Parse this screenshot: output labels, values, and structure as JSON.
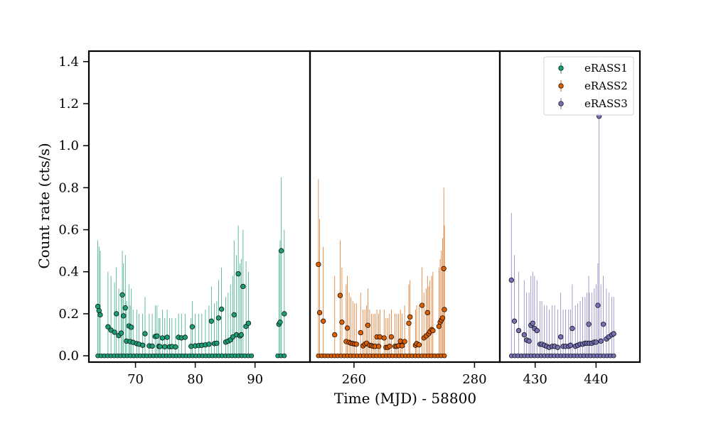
{
  "chart_data": {
    "type": "scatter",
    "xlabel": "Time (MJD) - 58800",
    "ylabel": "Count rate (cts/s)",
    "ylim": [
      -0.03,
      1.45
    ],
    "yticks": [
      0.0,
      0.2,
      0.4,
      0.6,
      0.8,
      1.0,
      1.2,
      1.4
    ],
    "ytick_labels": [
      "0.0",
      "0.2",
      "0.4",
      "0.6",
      "0.8",
      "1.0",
      "1.2",
      "1.4"
    ],
    "legend_position": "top-right",
    "grid": false,
    "panels": [
      {
        "name": "eRASS1",
        "xlim": [
          62.2,
          99.2
        ],
        "xticks": [
          70,
          80,
          90
        ],
        "xtick_labels": [
          "70",
          "80",
          "90"
        ]
      },
      {
        "name": "eRASS2",
        "xlim": [
          252.7,
          284.2
        ],
        "xticks": [
          260,
          280
        ],
        "xtick_labels": [
          "260",
          "280"
        ]
      },
      {
        "name": "eRASS3",
        "xlim": [
          424.2,
          447.2
        ],
        "xticks": [
          430,
          440
        ],
        "xtick_labels": [
          "430",
          "440"
        ]
      }
    ],
    "series": [
      {
        "name": "eRASS1",
        "color": "#1b9e77",
        "panel": 0,
        "points": [
          [
            63.7,
            0.235,
            0.55
          ],
          [
            63.9,
            0.215,
            0.52
          ],
          [
            64.1,
            0.195,
            0.5
          ],
          [
            65.4,
            0.138,
            0.4
          ],
          [
            65.9,
            0.122,
            0.38
          ],
          [
            66.5,
            0.112,
            0.35
          ],
          [
            66.8,
            0.2,
            0.42
          ],
          [
            67.2,
            0.096,
            0.32
          ],
          [
            67.6,
            0.108,
            0.3
          ],
          [
            67.8,
            0.29,
            0.5
          ],
          [
            68.0,
            0.19,
            0.44
          ],
          [
            68.3,
            0.228,
            0.48
          ],
          [
            68.5,
            0.07,
            0.26
          ],
          [
            68.9,
            0.142,
            0.34
          ],
          [
            69.1,
            0.068,
            0.24
          ],
          [
            69.3,
            0.136,
            0.32
          ],
          [
            69.6,
            0.064,
            0.22
          ],
          [
            70.2,
            0.058,
            0.22
          ],
          [
            70.6,
            0.055,
            0.2
          ],
          [
            71.2,
            0.05,
            0.2
          ],
          [
            71.6,
            0.105,
            0.28
          ],
          [
            72.3,
            0.047,
            0.2
          ],
          [
            72.8,
            0.046,
            0.2
          ],
          [
            73.3,
            0.092,
            0.24
          ],
          [
            73.6,
            0.094,
            0.24
          ],
          [
            73.9,
            0.045,
            0.18
          ],
          [
            74.1,
            0.044,
            0.18
          ],
          [
            74.5,
            0.085,
            0.22
          ],
          [
            74.9,
            0.043,
            0.18
          ],
          [
            75.3,
            0.088,
            0.22
          ],
          [
            75.7,
            0.043,
            0.18
          ],
          [
            76.1,
            0.044,
            0.18
          ],
          [
            76.7,
            0.042,
            0.18
          ],
          [
            77.2,
            0.088,
            0.2
          ],
          [
            77.7,
            0.085,
            0.2
          ],
          [
            78.3,
            0.088,
            0.2
          ],
          [
            79.3,
            0.045,
            0.18
          ],
          [
            79.5,
            0.138,
            0.26
          ],
          [
            80.0,
            0.047,
            0.2
          ],
          [
            80.6,
            0.049,
            0.2
          ],
          [
            81.1,
            0.05,
            0.2
          ],
          [
            81.7,
            0.052,
            0.22
          ],
          [
            82.3,
            0.055,
            0.24
          ],
          [
            82.7,
            0.165,
            0.33
          ],
          [
            83.2,
            0.058,
            0.25
          ],
          [
            83.6,
            0.06,
            0.26
          ],
          [
            83.9,
            0.18,
            0.36
          ],
          [
            84.4,
            0.222,
            0.42
          ],
          [
            85.1,
            0.065,
            0.28
          ],
          [
            85.5,
            0.07,
            0.3
          ],
          [
            85.9,
            0.076,
            0.34
          ],
          [
            86.3,
            0.09,
            0.38
          ],
          [
            86.5,
            0.195,
            0.55
          ],
          [
            86.9,
            0.1,
            0.48
          ],
          [
            87.2,
            0.39,
            0.62
          ],
          [
            87.5,
            0.095,
            0.44
          ],
          [
            87.7,
            0.1,
            0.46
          ],
          [
            88.0,
            0.33,
            0.6
          ],
          [
            88.5,
            0.14,
            0.45
          ],
          [
            88.9,
            0.155,
            0.4
          ],
          [
            94.0,
            0.15,
            0.5
          ],
          [
            94.2,
            0.16,
            0.55
          ],
          [
            94.4,
            0.5,
            0.85
          ],
          [
            94.9,
            0.2,
            0.6
          ]
        ]
      },
      {
        "name": "eRASS2",
        "color": "#d95f02",
        "panel": 1,
        "points": [
          [
            254.1,
            0.435,
            0.84
          ],
          [
            254.3,
            0.205,
            0.65
          ],
          [
            254.9,
            0.165,
            0.52
          ],
          [
            256.8,
            0.1,
            0.38
          ],
          [
            257.7,
            0.287,
            0.55
          ],
          [
            258.0,
            0.16,
            0.42
          ],
          [
            258.7,
            0.068,
            0.34
          ],
          [
            258.9,
            0.132,
            0.38
          ],
          [
            259.2,
            0.064,
            0.3
          ],
          [
            259.5,
            0.06,
            0.28
          ],
          [
            259.8,
            0.058,
            0.26
          ],
          [
            260.1,
            0.056,
            0.25
          ],
          [
            260.4,
            0.055,
            0.25
          ],
          [
            261.1,
            0.11,
            0.3
          ],
          [
            261.5,
            0.047,
            0.22
          ],
          [
            261.8,
            0.055,
            0.22
          ],
          [
            262.1,
            0.06,
            0.24
          ],
          [
            262.3,
            0.145,
            0.32
          ],
          [
            262.6,
            0.05,
            0.22
          ],
          [
            262.9,
            0.048,
            0.2
          ],
          [
            263.2,
            0.045,
            0.2
          ],
          [
            263.5,
            0.045,
            0.2
          ],
          [
            263.8,
            0.09,
            0.22
          ],
          [
            264.1,
            0.045,
            0.2
          ],
          [
            264.3,
            0.09,
            0.22
          ],
          [
            265.0,
            0.085,
            0.22
          ],
          [
            265.3,
            0.04,
            0.18
          ],
          [
            265.6,
            0.04,
            0.18
          ],
          [
            265.9,
            0.045,
            0.2
          ],
          [
            266.2,
            0.09,
            0.22
          ],
          [
            266.8,
            0.045,
            0.2
          ],
          [
            267.1,
            0.045,
            0.2
          ],
          [
            267.4,
            0.048,
            0.2
          ],
          [
            267.7,
            0.07,
            0.22
          ],
          [
            268.0,
            0.048,
            0.2
          ],
          [
            268.4,
            0.068,
            0.24
          ],
          [
            269.1,
            0.155,
            0.34
          ],
          [
            269.3,
            0.185,
            0.36
          ],
          [
            270.2,
            0.05,
            0.22
          ],
          [
            270.4,
            0.058,
            0.24
          ],
          [
            270.8,
            0.052,
            0.24
          ],
          [
            271.3,
            0.24,
            0.42
          ],
          [
            271.6,
            0.085,
            0.3
          ],
          [
            272.0,
            0.095,
            0.32
          ],
          [
            272.2,
            0.205,
            0.38
          ],
          [
            272.4,
            0.105,
            0.33
          ],
          [
            272.6,
            0.115,
            0.36
          ],
          [
            272.9,
            0.125,
            0.38
          ],
          [
            273.1,
            0.12,
            0.4
          ],
          [
            274.1,
            0.14,
            0.42
          ],
          [
            274.3,
            0.16,
            0.46
          ],
          [
            274.5,
            0.17,
            0.5
          ],
          [
            274.7,
            0.18,
            0.56
          ],
          [
            274.9,
            0.415,
            0.8
          ],
          [
            275.0,
            0.22,
            0.62
          ]
        ]
      },
      {
        "name": "eRASS3",
        "color": "#7570b3",
        "panel": 2,
        "points": [
          [
            426.1,
            0.36,
            0.68
          ],
          [
            426.6,
            0.165,
            0.48
          ],
          [
            427.3,
            0.12,
            0.4
          ],
          [
            428.2,
            0.1,
            0.36
          ],
          [
            428.6,
            0.075,
            0.3
          ],
          [
            429.0,
            0.07,
            0.3
          ],
          [
            429.3,
            0.145,
            0.38
          ],
          [
            429.6,
            0.155,
            0.4
          ],
          [
            429.9,
            0.13,
            0.38
          ],
          [
            430.3,
            0.12,
            0.36
          ],
          [
            430.8,
            0.055,
            0.26
          ],
          [
            431.1,
            0.055,
            0.26
          ],
          [
            431.5,
            0.05,
            0.24
          ],
          [
            431.9,
            0.045,
            0.24
          ],
          [
            432.3,
            0.04,
            0.22
          ],
          [
            432.8,
            0.045,
            0.24
          ],
          [
            433.2,
            0.045,
            0.24
          ],
          [
            433.7,
            0.04,
            0.22
          ],
          [
            434.2,
            0.09,
            0.3
          ],
          [
            434.6,
            0.045,
            0.22
          ],
          [
            435.0,
            0.045,
            0.22
          ],
          [
            435.5,
            0.045,
            0.22
          ],
          [
            435.8,
            0.05,
            0.22
          ],
          [
            436.1,
            0.13,
            0.34
          ],
          [
            436.6,
            0.045,
            0.24
          ],
          [
            437.0,
            0.05,
            0.25
          ],
          [
            437.4,
            0.055,
            0.26
          ],
          [
            437.8,
            0.055,
            0.28
          ],
          [
            438.2,
            0.06,
            0.28
          ],
          [
            438.5,
            0.06,
            0.3
          ],
          [
            438.8,
            0.15,
            0.38
          ],
          [
            438.9,
            0.06,
            0.3
          ],
          [
            439.3,
            0.06,
            0.3
          ],
          [
            439.7,
            0.065,
            0.32
          ],
          [
            440.0,
            0.065,
            0.34
          ],
          [
            440.3,
            0.24,
            0.44
          ],
          [
            440.5,
            1.14,
            1.4
          ],
          [
            440.8,
            0.07,
            0.34
          ],
          [
            441.2,
            0.15,
            0.38
          ],
          [
            441.7,
            0.08,
            0.32
          ],
          [
            442.1,
            0.09,
            0.3
          ],
          [
            442.6,
            0.1,
            0.28
          ],
          [
            442.9,
            0.105,
            0.28
          ]
        ]
      }
    ]
  }
}
